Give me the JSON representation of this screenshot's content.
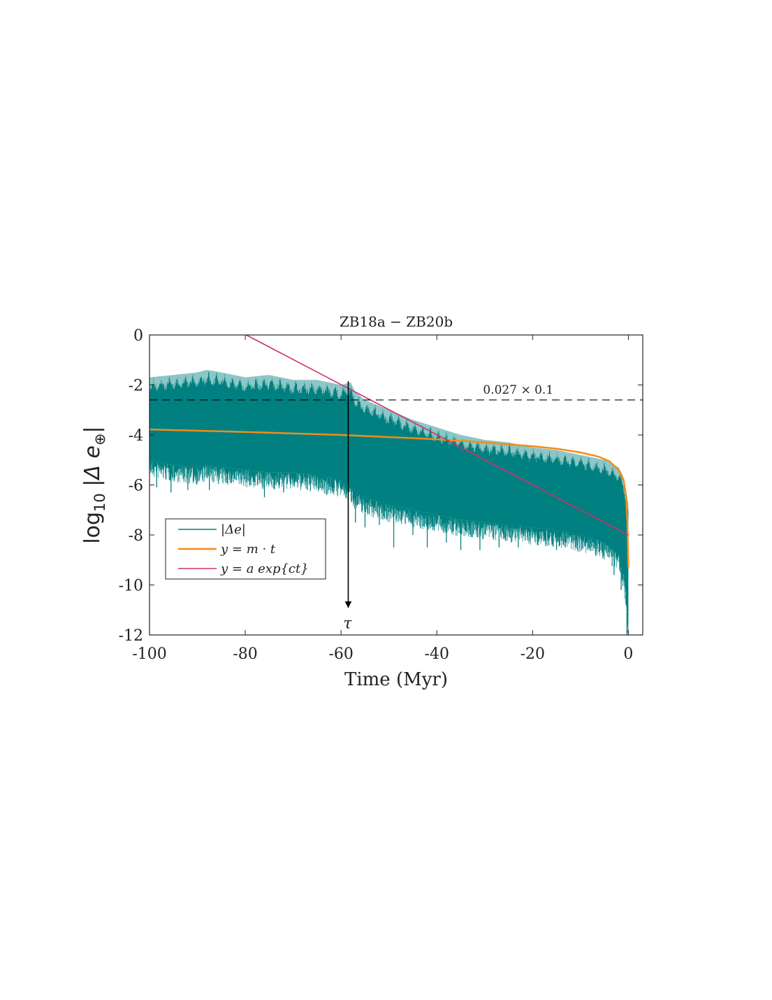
{
  "chart_data": {
    "type": "line",
    "title": "ZB18a − ZB20b",
    "xlabel": "Time (Myr)",
    "ylabel": {
      "prefix": "log",
      "sub": "10",
      "body": " |Δ e",
      "sub2": "⊕",
      "suffix": "|"
    },
    "xlim": [
      -100,
      3
    ],
    "ylim": [
      -12,
      0
    ],
    "xticks": [
      -100,
      -80,
      -60,
      -40,
      -20,
      0
    ],
    "yticks": [
      0,
      -2,
      -4,
      -6,
      -8,
      -10,
      -12
    ],
    "grid": false,
    "legend_position": "lower-left",
    "series": [
      {
        "name": "|Δe|",
        "color": "#008080",
        "style": "band",
        "envelope": {
          "x": [
            -100,
            -95,
            -90,
            -88,
            -85,
            -80,
            -75,
            -70,
            -65,
            -60,
            -58,
            -57,
            -55,
            -50,
            -45,
            -40,
            -35,
            -30,
            -25,
            -20,
            -15,
            -10,
            -5,
            -2,
            -1,
            -0.5,
            0
          ],
          "upper": [
            -1.7,
            -1.6,
            -1.5,
            -1.4,
            -1.5,
            -1.7,
            -1.6,
            -1.8,
            -1.8,
            -2.0,
            -1.9,
            -2.3,
            -2.6,
            -3.0,
            -3.4,
            -3.7,
            -4.0,
            -4.2,
            -4.3,
            -4.5,
            -4.6,
            -4.8,
            -5.0,
            -5.3,
            -5.7,
            -6.2,
            -6.8
          ],
          "lower": [
            -5.0,
            -5.2,
            -5.3,
            -5.2,
            -5.3,
            -5.4,
            -5.5,
            -5.5,
            -5.6,
            -5.8,
            -6.0,
            -6.3,
            -6.5,
            -6.8,
            -7.0,
            -7.2,
            -7.4,
            -7.5,
            -7.6,
            -7.7,
            -7.8,
            -8.0,
            -8.3,
            -8.8,
            -9.5,
            -10.5,
            -12.0
          ]
        },
        "deep_spikes": [
          {
            "x": -98.5,
            "y": -6.1
          },
          {
            "x": -95.5,
            "y": -6.3
          },
          {
            "x": -92.0,
            "y": -6.2
          },
          {
            "x": -87.5,
            "y": -6.2
          },
          {
            "x": -83.0,
            "y": -5.8
          },
          {
            "x": -79.0,
            "y": -6.0
          },
          {
            "x": -76.0,
            "y": -6.5
          },
          {
            "x": -72.0,
            "y": -6.3
          },
          {
            "x": -67.0,
            "y": -6.2
          },
          {
            "x": -63.0,
            "y": -6.4
          },
          {
            "x": -59.0,
            "y": -6.5
          },
          {
            "x": -57.0,
            "y": -7.5
          },
          {
            "x": -55.0,
            "y": -7.7
          },
          {
            "x": -52.0,
            "y": -7.6
          },
          {
            "x": -49.0,
            "y": -8.5
          },
          {
            "x": -45.0,
            "y": -8.0
          },
          {
            "x": -42.0,
            "y": -8.5
          },
          {
            "x": -38.0,
            "y": -8.3
          },
          {
            "x": -35.0,
            "y": -8.6
          },
          {
            "x": -31.0,
            "y": -8.6
          },
          {
            "x": -27.0,
            "y": -8.5
          },
          {
            "x": -23.0,
            "y": -8.5
          },
          {
            "x": -19.0,
            "y": -8.4
          },
          {
            "x": -15.0,
            "y": -8.6
          },
          {
            "x": -11.0,
            "y": -8.5
          },
          {
            "x": -6.0,
            "y": -8.7
          },
          {
            "x": -3.0,
            "y": -9.6
          },
          {
            "x": -1.5,
            "y": -10.2
          },
          {
            "x": -0.3,
            "y": -12.0
          }
        ]
      },
      {
        "name": "y = m · t",
        "color": "#F28C18",
        "style": "line",
        "x": [
          -100,
          -80,
          -60,
          -40,
          -30,
          -20,
          -15,
          -10,
          -6,
          -4,
          -2,
          -1,
          -0.5,
          -0.2,
          0
        ],
        "y": [
          -3.78,
          -3.88,
          -4.0,
          -4.17,
          -4.3,
          -4.45,
          -4.55,
          -4.7,
          -4.88,
          -5.05,
          -5.4,
          -5.8,
          -6.4,
          -7.5,
          -9.3
        ]
      },
      {
        "name": "y = a exp{ct}",
        "color": "#D1306B",
        "style": "line",
        "x": [
          -79.8,
          0
        ],
        "y": [
          0,
          -8.0
        ]
      }
    ],
    "threshold": {
      "y": -2.6,
      "label": "0.027 × 0.1",
      "label_x": -23
    },
    "tau_marker": {
      "x": -58.5,
      "y_start": -1.85,
      "y_end": -10.9,
      "label": "τ"
    }
  }
}
